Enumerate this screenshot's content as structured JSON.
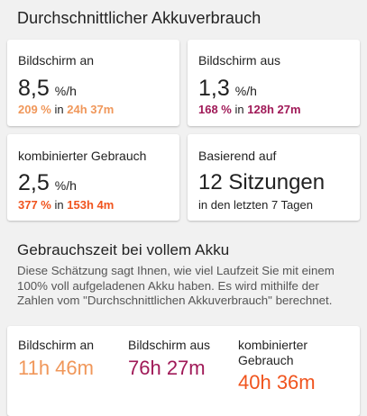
{
  "consumption": {
    "title": "Durchschnittlicher Akkuverbrauch",
    "cards": [
      {
        "label": "Bildschirm an",
        "value": "8,5",
        "unit": "%/h",
        "pct": "209 %",
        "in_word": "in",
        "duration": "24h 37m",
        "color": "#f0975a"
      },
      {
        "label": "Bildschirm aus",
        "value": "1,3",
        "unit": "%/h",
        "pct": "168 %",
        "in_word": "in",
        "duration": "128h 27m",
        "color": "#a01a58"
      },
      {
        "label": "kombinierter Gebrauch",
        "value": "2,5",
        "unit": "%/h",
        "pct": "377 %",
        "in_word": "in",
        "duration": "153h 4m",
        "color": "#f0541e"
      },
      {
        "label": "Basierend auf",
        "value": "12 Sitzungen",
        "sub": "in den letzten 7 Tagen"
      }
    ]
  },
  "fullcharge": {
    "title": "Gebrauchszeit bei vollem Akku",
    "description": "Diese Schätzung sagt Ihnen, wie viel Laufzeit Sie mit einem 100% voll aufgeladenen Akku haben. Es wird mithilfe der Zahlen vom \"Durchschnittlichen Akkuverbrauch\" berechnet.",
    "stats": [
      {
        "label": "Bildschirm an",
        "value": "11h 46m",
        "color": "#f0975a"
      },
      {
        "label": "Bildschirm aus",
        "value": "76h 27m",
        "color": "#a01a58"
      },
      {
        "label": "kombinierter Gebrauch",
        "value": "40h 36m",
        "color": "#f0541e"
      }
    ]
  }
}
